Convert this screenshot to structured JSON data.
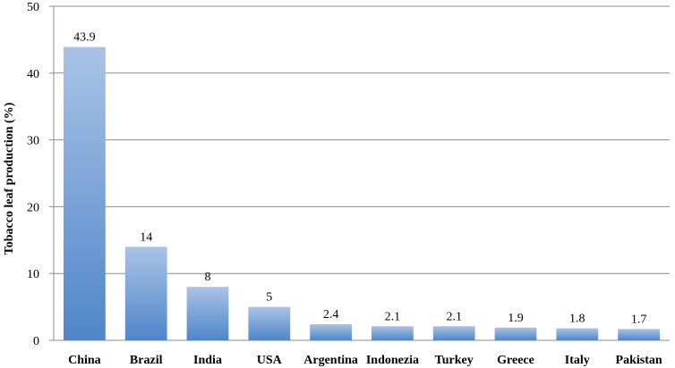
{
  "chart_data": {
    "type": "bar",
    "categories": [
      "China",
      "Brazil",
      "India",
      "USA",
      "Argentina",
      "Indonezia",
      "Turkey",
      "Greece",
      "Italy",
      "Pakistan"
    ],
    "values": [
      43.9,
      14,
      8,
      5,
      2.4,
      2.1,
      2.1,
      1.9,
      1.8,
      1.7
    ],
    "data_labels": [
      "43.9",
      "14",
      "8",
      "5",
      "2.4",
      "2.1",
      "2.1",
      "1.9",
      "1.8",
      "1.7"
    ],
    "ylabel": "Tobacco leaf production (%)",
    "xlabel": "",
    "ylim": [
      0,
      50
    ],
    "yticks": [
      "0",
      "10",
      "20",
      "30",
      "40",
      "50"
    ],
    "grid": true,
    "colors": {
      "bar_top": "#a9c3e6",
      "bar_bottom": "#4f86c9",
      "grid": "#8c8c8c",
      "axis": "#8c8c8c"
    }
  }
}
